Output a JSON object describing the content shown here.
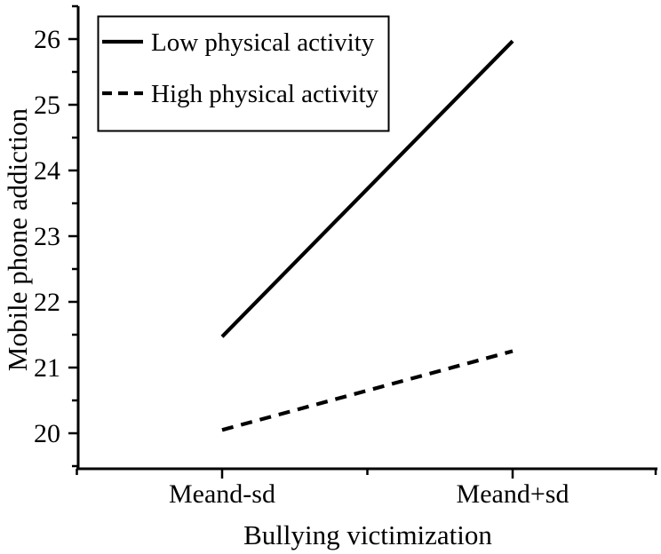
{
  "figure": {
    "background": "#ffffff",
    "ink": "#000000"
  },
  "chart_data": {
    "type": "line",
    "title": "",
    "xlabel": "Bullying victimization",
    "ylabel": "Mobile phone addiction",
    "categories": [
      "Meand-sd",
      "Meand+sd"
    ],
    "series": [
      {
        "name": "Low physical activity",
        "style": "solid",
        "values": [
          21.47,
          25.97
        ]
      },
      {
        "name": "High physical activity",
        "style": "dashed",
        "values": [
          20.05,
          21.25
        ]
      }
    ],
    "y_axis": {
      "min": 19.45,
      "max": 26.5,
      "major_ticks": [
        20,
        21,
        22,
        23,
        24,
        25,
        26
      ],
      "minor_ticks": [
        19.5,
        20.5,
        21.5,
        22.5,
        23.5,
        24.5,
        25.5,
        26.5
      ]
    },
    "x_axis": {
      "major_positions": [
        1,
        2
      ],
      "minor_positions": [
        0.5,
        1.5,
        2.5
      ]
    },
    "legend": {
      "position": "top-left",
      "entries": [
        "Low physical activity",
        "High physical activity"
      ]
    },
    "grid": false
  }
}
